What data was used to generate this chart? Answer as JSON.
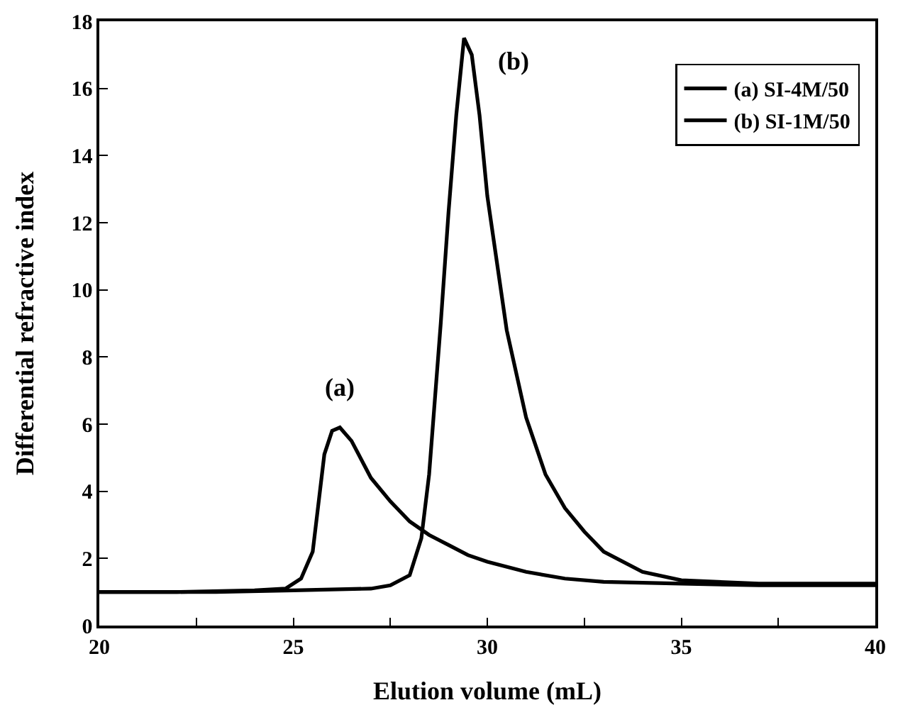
{
  "chart_data": {
    "type": "line",
    "xlabel": "Elution volume (mL)",
    "ylabel": "Differential refractive index",
    "xlim": [
      20,
      40
    ],
    "ylim": [
      0,
      18
    ],
    "xticks": [
      20,
      {
        "value": 22.5,
        "label": null
      },
      25,
      {
        "value": 27.5,
        "label": null
      },
      30,
      {
        "value": 32.5,
        "label": null
      },
      35,
      {
        "value": 37.5,
        "label": null
      },
      40
    ],
    "yticks": [
      0,
      2,
      4,
      6,
      8,
      10,
      12,
      14,
      16,
      18
    ],
    "grid": false,
    "legend": "top right",
    "marker": "none",
    "line_style": "solid",
    "annotations": [
      "(a)",
      "(b)"
    ],
    "series": [
      {
        "name": "(a) SI-4M/50",
        "color": "#000000",
        "x": [
          20,
          22,
          24,
          24.8,
          25.2,
          25.5,
          25.8,
          26,
          26.2,
          26.5,
          27,
          27.5,
          28,
          28.5,
          29,
          29.5,
          30,
          31,
          32,
          33,
          35,
          37,
          40
        ],
        "values": [
          1.0,
          1.0,
          1.05,
          1.1,
          1.4,
          2.2,
          5.1,
          5.8,
          5.9,
          5.5,
          4.4,
          3.7,
          3.1,
          2.7,
          2.4,
          2.1,
          1.9,
          1.6,
          1.4,
          1.3,
          1.25,
          1.2,
          1.2
        ]
      },
      {
        "name": "(b) SI-1M/50",
        "color": "#000000",
        "x": [
          20,
          23,
          25,
          27,
          27.5,
          28,
          28.3,
          28.5,
          28.8,
          29,
          29.2,
          29.4,
          29.6,
          29.8,
          30,
          30.5,
          31,
          31.5,
          32,
          32.5,
          33,
          34,
          35,
          37,
          40
        ],
        "values": [
          1.0,
          1.0,
          1.05,
          1.1,
          1.2,
          1.5,
          2.6,
          4.5,
          9.0,
          12.3,
          15.2,
          17.5,
          17.0,
          15.2,
          12.8,
          8.8,
          6.2,
          4.5,
          3.5,
          2.8,
          2.2,
          1.6,
          1.35,
          1.25,
          1.25
        ]
      }
    ]
  }
}
